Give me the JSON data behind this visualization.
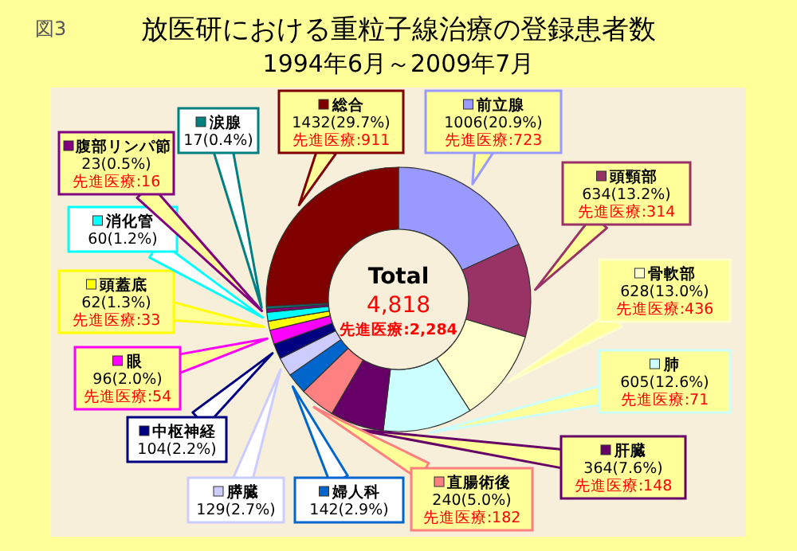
{
  "chart_data": {
    "type": "donut",
    "legend": "top left",
    "title": "放医研における重粒子線治療の登録患者数",
    "subtitle": "1994年6月～2009年7月",
    "categories": [
      "前立腺",
      "頭頸部",
      "骨軟部",
      "肺",
      "肝臓",
      "直腸術後",
      "婦人科",
      "膵臓",
      "中枢神経",
      "眼",
      "頭蓋底",
      "消化管",
      "腹部リンパ節",
      "涙腺",
      "総合"
    ],
    "values": [
      1006,
      634,
      628,
      605,
      364,
      240,
      142,
      129,
      104,
      96,
      62,
      60,
      23,
      17,
      1432
    ],
    "colors": [
      "#9999ff",
      "#993366",
      "#ffffcc",
      "#ccffff",
      "#660066",
      "#ff8080",
      "#0066cc",
      "#ccccff",
      "#000080",
      "#ff00ff",
      "#ffff00",
      "#00ffff",
      "#800080",
      "#008080",
      "#800000"
    ],
    "value_labels": [
      "1006(20.9%)",
      "634(13.2%)",
      "628(13.0%)",
      "605(12.6%)",
      "364(7.6%)",
      "240(5.0%)",
      "142(2.9%)",
      "129(2.7%)",
      "104(2.2%)",
      "96(2.0%)",
      "62(1.3%)",
      "60(1.2%)",
      "23(0.5%)",
      "17(0.4%)",
      "1432(29.7%)"
    ],
    "annotations": [
      "図3",
      "Total",
      "4,818",
      "先進医療:2,284",
      {
        "text": "先進医療:723",
        "x": "前立腺"
      },
      {
        "text": "先進医療:314",
        "x": "頭頸部"
      },
      {
        "text": "先進医療:436",
        "x": "骨軟部"
      },
      {
        "text": "先進医療:71",
        "x": "肺"
      },
      {
        "text": "先進医療:148",
        "x": "肝臓"
      },
      {
        "text": "先進医療:182",
        "x": "直腸術後"
      },
      {
        "text": "先進医療:54",
        "x": "眼"
      },
      {
        "text": "先進医療:33",
        "x": "頭蓋底"
      },
      {
        "text": "先進医療:16",
        "x": "腹部リンパ節"
      },
      {
        "text": "先進医療:911",
        "x": "総合"
      }
    ]
  }
}
